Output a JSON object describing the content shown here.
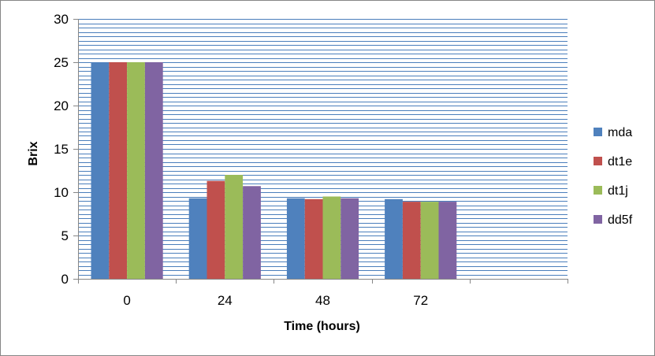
{
  "chart_data": {
    "type": "bar",
    "title": "",
    "xlabel": "Time (hours)",
    "ylabel": "Brix",
    "categories": [
      "0",
      "24",
      "48",
      "72",
      ""
    ],
    "ylim": [
      0,
      30
    ],
    "yticks": [
      "0",
      "5",
      "10",
      "15",
      "20",
      "25",
      "30"
    ],
    "grid": true,
    "grid_style": "dense horizontal lines",
    "legend_position": "right",
    "series": [
      {
        "name": "mda",
        "color": "#4F81BD",
        "values": [
          25,
          9.3,
          9.3,
          9.2,
          null
        ]
      },
      {
        "name": "dt1e",
        "color": "#C0504D",
        "values": [
          25,
          11.3,
          9.2,
          8.9,
          null
        ]
      },
      {
        "name": "dt1j",
        "color": "#9BBB59",
        "values": [
          25,
          12.0,
          9.5,
          8.9,
          null
        ]
      },
      {
        "name": "dd5f",
        "color": "#8064A2",
        "values": [
          25,
          10.7,
          9.3,
          8.9,
          null
        ]
      }
    ]
  }
}
